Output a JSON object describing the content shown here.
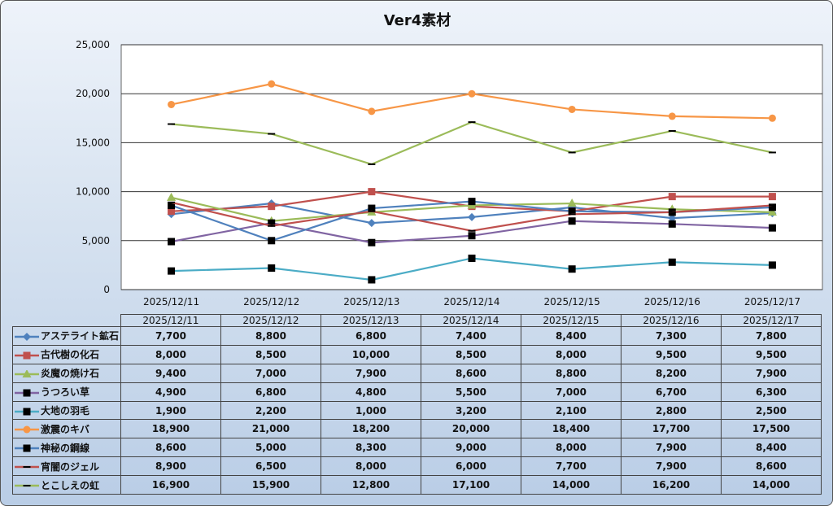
{
  "chart_data": {
    "type": "line",
    "title": "Ver4素材",
    "categories": [
      "2025/12/11",
      "2025/12/12",
      "2025/12/13",
      "2025/12/14",
      "2025/12/15",
      "2025/12/16",
      "2025/12/17"
    ],
    "ylim": [
      0,
      25000
    ],
    "yticks": [
      "0",
      "5,000",
      "10,000",
      "15,000",
      "20,000",
      "25,000"
    ],
    "ytick_values": [
      0,
      5000,
      10000,
      15000,
      20000,
      25000
    ],
    "grid": true,
    "legend": "data-table-bottom",
    "series": [
      {
        "name": "アステライト鉱石",
        "color": "#4f81bd",
        "marker": "diamond",
        "values": [
          7700,
          8800,
          6800,
          7400,
          8400,
          7300,
          7800
        ],
        "labels": [
          "7,700",
          "8,800",
          "6,800",
          "7,400",
          "8,400",
          "7,300",
          "7,800"
        ]
      },
      {
        "name": "古代樹の化石",
        "color": "#c0504d",
        "marker": "square",
        "values": [
          8000,
          8500,
          10000,
          8500,
          8000,
          9500,
          9500
        ],
        "labels": [
          "8,000",
          "8,500",
          "10,000",
          "8,500",
          "8,000",
          "9,500",
          "9,500"
        ]
      },
      {
        "name": "炎魔の焼け石",
        "color": "#9bbb59",
        "marker": "triangle",
        "values": [
          9400,
          7000,
          7900,
          8600,
          8800,
          8200,
          7900
        ],
        "labels": [
          "9,400",
          "7,000",
          "7,900",
          "8,600",
          "8,800",
          "8,200",
          "7,900"
        ]
      },
      {
        "name": "うつろい草",
        "color": "#8064a2",
        "marker": "blacksquare",
        "values": [
          4900,
          6800,
          4800,
          5500,
          7000,
          6700,
          6300
        ],
        "labels": [
          "4,900",
          "6,800",
          "4,800",
          "5,500",
          "7,000",
          "6,700",
          "6,300"
        ]
      },
      {
        "name": "大地の羽毛",
        "color": "#4bacc6",
        "marker": "blacksquare",
        "values": [
          1900,
          2200,
          1000,
          3200,
          2100,
          2800,
          2500
        ],
        "labels": [
          "1,900",
          "2,200",
          "1,000",
          "3,200",
          "2,100",
          "2,800",
          "2,500"
        ]
      },
      {
        "name": "激震のキバ",
        "color": "#f79646",
        "marker": "circle",
        "values": [
          18900,
          21000,
          18200,
          20000,
          18400,
          17700,
          17500
        ],
        "labels": [
          "18,900",
          "21,000",
          "18,200",
          "20,000",
          "18,400",
          "17,700",
          "17,500"
        ]
      },
      {
        "name": "神秘の鋼線",
        "color": "#4f81bd",
        "marker": "blacksquare",
        "values": [
          8600,
          5000,
          8300,
          9000,
          8000,
          7900,
          8400
        ],
        "labels": [
          "8,600",
          "5,000",
          "8,300",
          "9,000",
          "8,000",
          "7,900",
          "8,400"
        ]
      },
      {
        "name": "宵闇のジェル",
        "color": "#c0504d",
        "marker": "dash",
        "values": [
          8900,
          6500,
          8000,
          6000,
          7700,
          7900,
          8600
        ],
        "labels": [
          "8,900",
          "6,500",
          "8,000",
          "6,000",
          "7,700",
          "7,900",
          "8,600"
        ]
      },
      {
        "name": "とこしえの虹",
        "color": "#9bbb59",
        "marker": "dash",
        "values": [
          16900,
          15900,
          12800,
          17100,
          14000,
          16200,
          14000
        ],
        "labels": [
          "16,900",
          "15,900",
          "12,800",
          "17,100",
          "14,000",
          "16,200",
          "14,000"
        ]
      }
    ]
  }
}
